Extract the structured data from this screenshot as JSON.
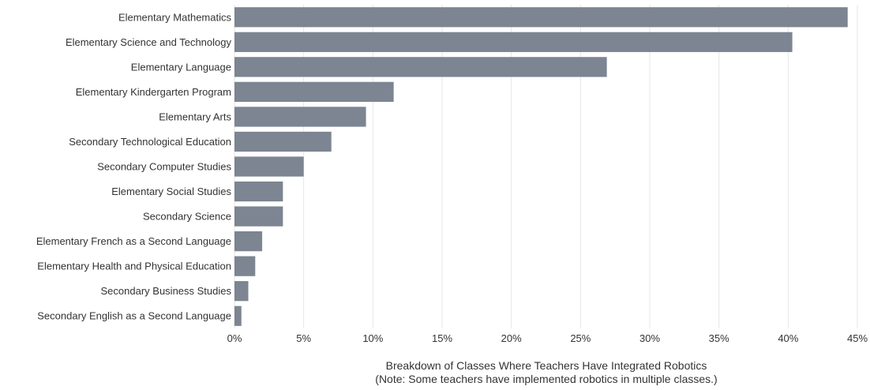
{
  "chart_data": {
    "type": "bar",
    "orientation": "horizontal",
    "categories": [
      "Elementary Mathematics",
      "Elementary Science and Technology",
      "Elementary Language",
      "Elementary Kindergarten Program",
      "Elementary Arts",
      "Secondary Technological Education",
      "Secondary Computer Studies",
      "Elementary Social Studies",
      "Secondary Science",
      "Elementary French as a Second Language",
      "Elementary Health and Physical Education",
      "Secondary Business Studies",
      "Secondary English as a Second Language"
    ],
    "values": [
      44.3,
      40.3,
      26.9,
      11.5,
      9.5,
      7.0,
      5.0,
      3.5,
      3.5,
      2.0,
      1.5,
      1.0,
      0.5
    ],
    "xlim": [
      0,
      45
    ],
    "x_ticks": [
      0,
      5,
      10,
      15,
      20,
      25,
      30,
      35,
      40,
      45
    ],
    "x_tick_labels": [
      "0%",
      "5%",
      "10%",
      "15%",
      "20%",
      "25%",
      "30%",
      "35%",
      "40%",
      "45%"
    ],
    "xlabel_lines": [
      "Breakdown of Classes Where Teachers Have Integrated Robotics",
      "(Note: Some teachers have implemented robotics in multiple classes.)"
    ],
    "ylabel": "",
    "title": "",
    "grid": "vertical",
    "legend": "none",
    "colors": {
      "bar": "#7c8591",
      "grid": "#e6e6e6",
      "text": "#333333",
      "background": "#ffffff"
    }
  }
}
